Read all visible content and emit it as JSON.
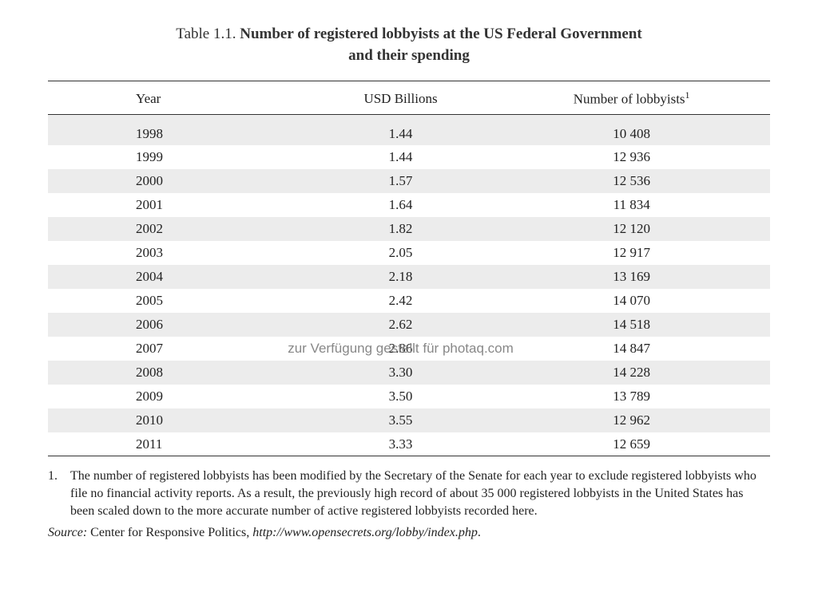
{
  "caption": {
    "label": "Table 1.1.",
    "title_line1": "Number of registered lobbyists at the US Federal Government",
    "title_line2": "and their spending"
  },
  "table": {
    "type": "table",
    "columns": [
      "Year",
      "USD Billions",
      "Number of lobbyists"
    ],
    "header_superscript": "1",
    "column_align": [
      "left",
      "center",
      "center"
    ],
    "row_stripe_color": "#ececec",
    "background_color": "#ffffff",
    "border_color": "#333333",
    "text_color": "#222222",
    "font_size": 17,
    "rows": [
      [
        "1998",
        "1.44",
        "10 408"
      ],
      [
        "1999",
        "1.44",
        "12 936"
      ],
      [
        "2000",
        "1.57",
        "12 536"
      ],
      [
        "2001",
        "1.64",
        "11 834"
      ],
      [
        "2002",
        "1.82",
        "12 120"
      ],
      [
        "2003",
        "2.05",
        "12 917"
      ],
      [
        "2004",
        "2.18",
        "13 169"
      ],
      [
        "2005",
        "2.42",
        "14 070"
      ],
      [
        "2006",
        "2.62",
        "14 518"
      ],
      [
        "2007",
        "2.86",
        "14 847"
      ],
      [
        "2008",
        "3.30",
        "14 228"
      ],
      [
        "2009",
        "3.50",
        "13 789"
      ],
      [
        "2010",
        "3.55",
        "12 962"
      ],
      [
        "2011",
        "3.33",
        "12 659"
      ]
    ]
  },
  "footnote": {
    "number": "1.",
    "text": "The number of registered lobbyists has been modified by the Secretary of the Senate for each year to exclude registered lobbyists who file no financial activity reports. As a result, the previously high record of about 35 000 registered lobbyists in the United States has been scaled down to the more accurate number of active registered lobbyists recorded here."
  },
  "source": {
    "label": "Source:",
    "text": "Center for Responsive Politics, ",
    "url": "http://www.opensecrets.org/lobby/index.php",
    "suffix": "."
  },
  "watermark": {
    "text": "zur Verfügung gestellt für photaq.com",
    "row_index": 9,
    "color": "#888888"
  }
}
